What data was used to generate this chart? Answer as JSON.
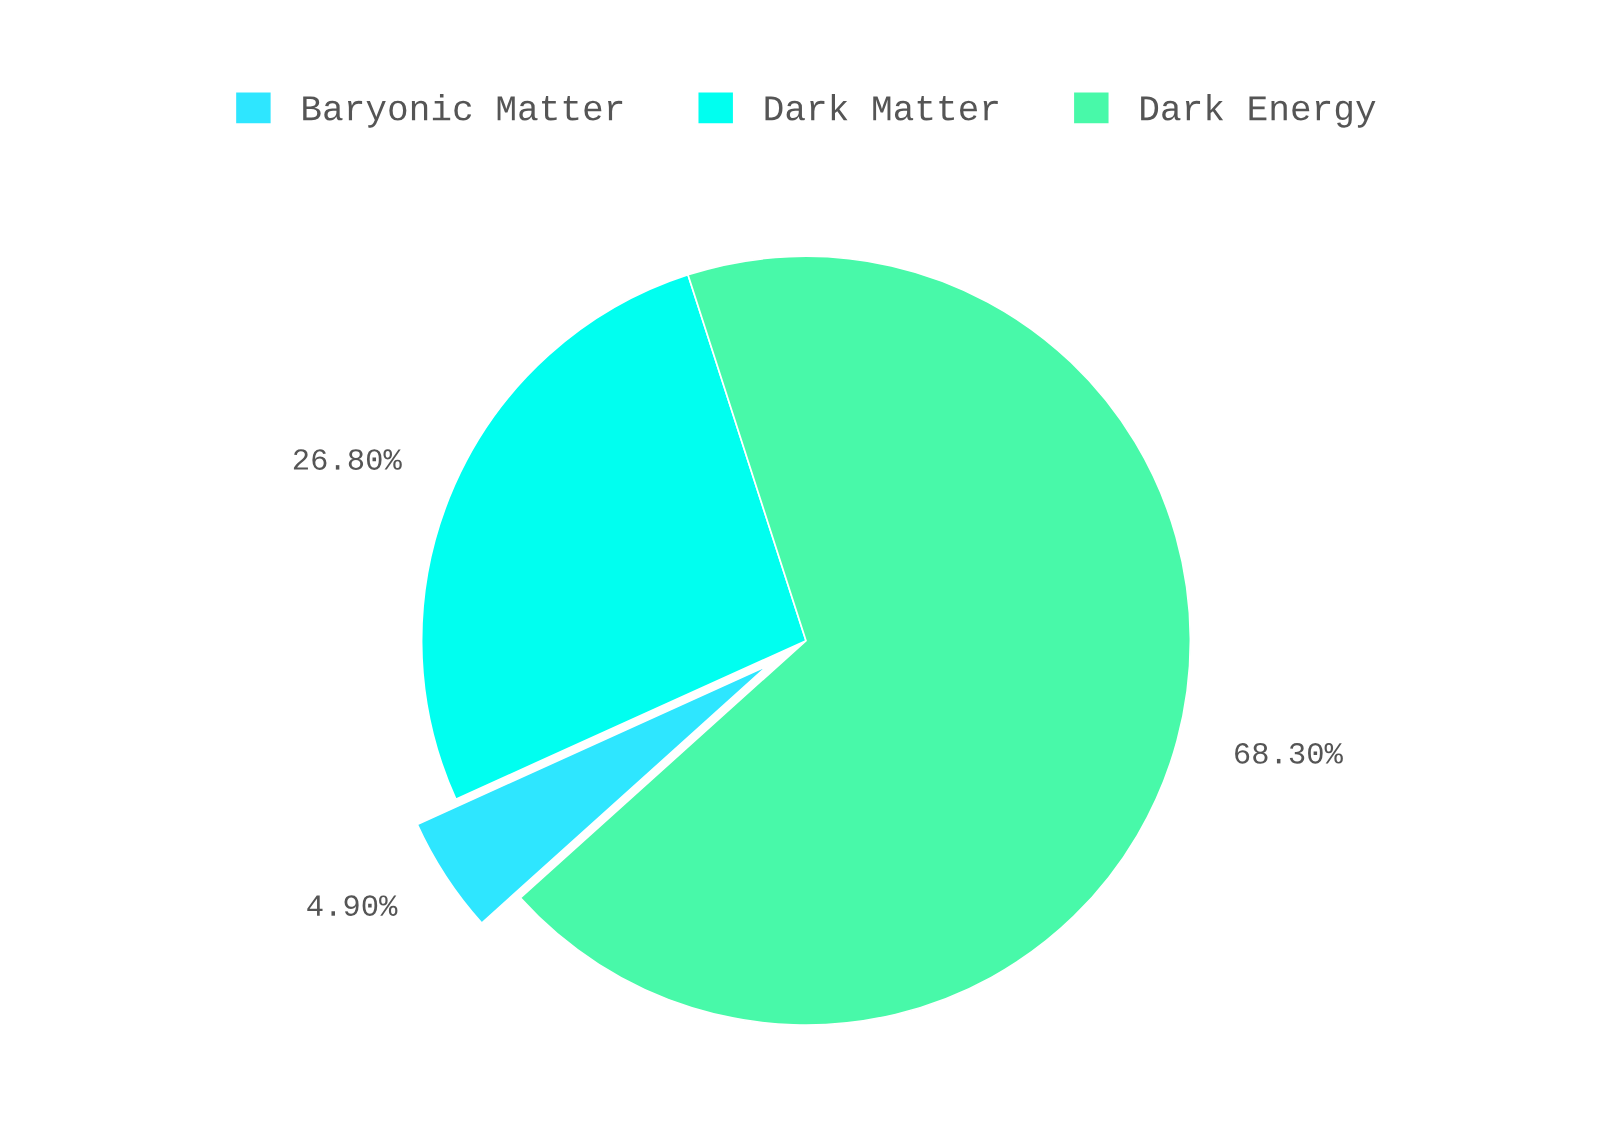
{
  "chart_data": {
    "type": "pie",
    "categories": [
      "Baryonic Matter",
      "Dark Matter",
      "Dark Energy"
    ],
    "values": [
      4.9,
      26.8,
      68.3
    ],
    "value_labels": [
      "4.90%",
      "26.80%",
      "68.30%"
    ],
    "colors": [
      "#2ee6ff",
      "#00fff0",
      "#48f9a9"
    ],
    "legend": "top"
  }
}
